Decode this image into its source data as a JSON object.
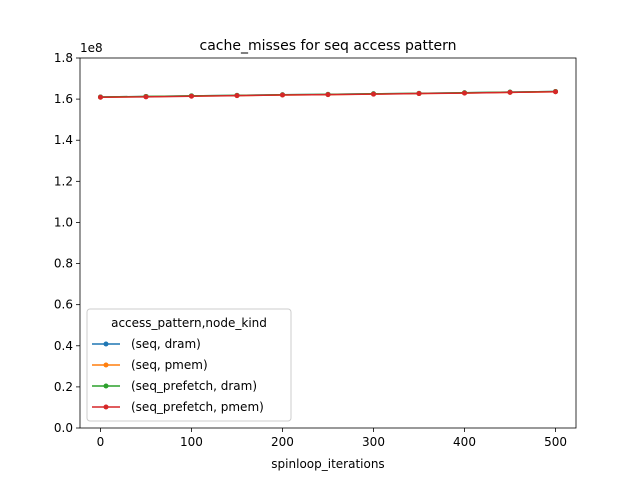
{
  "chart_data": {
    "type": "line",
    "title": "cache_misses for seq access pattern",
    "xlabel": "spinloop_iterations",
    "ylabel": "",
    "y_offset_label": "1e8",
    "y_scale": 100000000,
    "xlim": [
      -22.5,
      522.5
    ],
    "ylim": [
      0,
      180000000
    ],
    "x_ticks": [
      0,
      100,
      200,
      300,
      400,
      500
    ],
    "x_tick_labels": [
      "0",
      "100",
      "200",
      "300",
      "400",
      "500"
    ],
    "y_ticks": [
      0,
      20000000,
      40000000,
      60000000,
      80000000,
      100000000,
      120000000,
      140000000,
      160000000,
      180000000
    ],
    "y_tick_labels": [
      "0.0",
      "0.2",
      "0.4",
      "0.6",
      "0.8",
      "1.0",
      "1.2",
      "1.4",
      "1.6",
      "1.8"
    ],
    "grid": false,
    "legend": {
      "title": "access_pattern,node_kind",
      "placement": "lower-left"
    },
    "x": [
      0,
      50,
      100,
      150,
      200,
      250,
      300,
      350,
      400,
      450,
      500
    ],
    "series": [
      {
        "name": "(seq, dram)",
        "color": "#1f77b4",
        "values": [
          161000000,
          161300000,
          161600000,
          161800000,
          162100000,
          162300000,
          162600000,
          162800000,
          163100000,
          163400000,
          163700000
        ]
      },
      {
        "name": "(seq, pmem)",
        "color": "#ff7f0e",
        "values": [
          160900000,
          161200000,
          161500000,
          161700000,
          162000000,
          162200000,
          162500000,
          162700000,
          163000000,
          163300000,
          163600000
        ]
      },
      {
        "name": "(seq_prefetch, dram)",
        "color": "#2ca02c",
        "values": [
          161000000,
          161300000,
          161600000,
          161800000,
          162100000,
          162300000,
          162600000,
          162800000,
          163100000,
          163400000,
          163700000
        ]
      },
      {
        "name": "(seq_prefetch, pmem)",
        "color": "#d62728",
        "values": [
          160900000,
          161100000,
          161400000,
          161700000,
          162000000,
          162200000,
          162400000,
          162700000,
          162900000,
          163300000,
          163600000
        ]
      }
    ]
  }
}
